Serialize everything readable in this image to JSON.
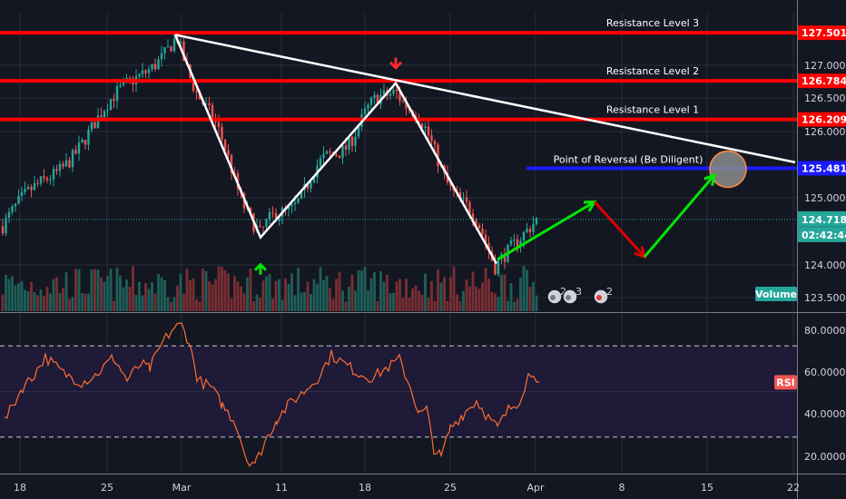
{
  "chart_data": [
    {
      "type": "candlestick",
      "panel": "price",
      "x_ticks": [
        "18",
        "25",
        "Mar",
        "11",
        "18",
        "25",
        "Apr",
        "8",
        "15",
        "22"
      ],
      "y_ticks": [
        "127.000",
        "126.500",
        "126.000",
        "125.000",
        "124.000",
        "123.500"
      ],
      "ylim": [
        123.35,
        127.8
      ],
      "grid": true,
      "last_price": "124.718",
      "countdown": "02:42:44",
      "volume_label": "Volume",
      "resistance_levels": [
        {
          "name": "Resistance Level 3",
          "price": 127.501,
          "price_label": "127.501"
        },
        {
          "name": "Resistance Level 2",
          "price": 126.784,
          "price_label": "126.784"
        },
        {
          "name": "Resistance Level 1",
          "price": 126.209,
          "price_label": "126.209"
        }
      ],
      "reversal": {
        "name": "Point of Reversal (Be Diligent)",
        "price": 125.481,
        "price_label": "125.481"
      },
      "swing_points": [
        {
          "x": 193,
          "price": 127.47
        },
        {
          "x": 287,
          "price": 124.45
        },
        {
          "x": 436,
          "price": 126.75
        },
        {
          "x": 547,
          "price": 124.06
        }
      ],
      "trendline": [
        {
          "x": 193,
          "price": 127.47
        },
        {
          "x": 876,
          "price": 125.57
        }
      ],
      "projection_path": [
        {
          "x": 548,
          "price": 124.12,
          "color": "#00e600"
        },
        {
          "x": 655,
          "price": 124.98,
          "color": "#e00000"
        },
        {
          "x": 710,
          "price": 124.16,
          "color": "#00e600"
        },
        {
          "x": 787,
          "price": 125.38
        }
      ],
      "event_badges": [
        "2",
        "3",
        "2"
      ],
      "colors": {
        "up": "#26a69a",
        "down": "#ef5350",
        "resistance": "#ff0000",
        "reversal": "#1a1aff",
        "trendline": "#ffffff"
      }
    },
    {
      "type": "line",
      "panel": "rsi",
      "label": "RSI",
      "y_ticks": [
        "80.0000",
        "60.0000",
        "40.0000",
        "20.0000"
      ],
      "ylim": [
        14,
        84
      ],
      "band": [
        30,
        70
      ],
      "last_value": 54,
      "color": "#ff6d2e",
      "series": [
        {
          "x": 5,
          "y": 37
        },
        {
          "x": 25,
          "y": 52
        },
        {
          "x": 35,
          "y": 56
        },
        {
          "x": 50,
          "y": 65
        },
        {
          "x": 70,
          "y": 58
        },
        {
          "x": 90,
          "y": 54
        },
        {
          "x": 105,
          "y": 57
        },
        {
          "x": 125,
          "y": 65
        },
        {
          "x": 140,
          "y": 55
        },
        {
          "x": 155,
          "y": 62
        },
        {
          "x": 165,
          "y": 60
        },
        {
          "x": 180,
          "y": 72
        },
        {
          "x": 192,
          "y": 78
        },
        {
          "x": 200,
          "y": 79
        },
        {
          "x": 208,
          "y": 72
        },
        {
          "x": 218,
          "y": 55
        },
        {
          "x": 232,
          "y": 52
        },
        {
          "x": 245,
          "y": 44
        },
        {
          "x": 260,
          "y": 36
        },
        {
          "x": 272,
          "y": 20
        },
        {
          "x": 282,
          "y": 19
        },
        {
          "x": 292,
          "y": 28
        },
        {
          "x": 305,
          "y": 38
        },
        {
          "x": 320,
          "y": 45
        },
        {
          "x": 335,
          "y": 50
        },
        {
          "x": 350,
          "y": 56
        },
        {
          "x": 365,
          "y": 66
        },
        {
          "x": 380,
          "y": 62
        },
        {
          "x": 395,
          "y": 58
        },
        {
          "x": 410,
          "y": 56
        },
        {
          "x": 425,
          "y": 60
        },
        {
          "x": 440,
          "y": 64
        },
        {
          "x": 452,
          "y": 52
        },
        {
          "x": 462,
          "y": 40
        },
        {
          "x": 470,
          "y": 42
        },
        {
          "x": 478,
          "y": 25
        },
        {
          "x": 486,
          "y": 21
        },
        {
          "x": 496,
          "y": 34
        },
        {
          "x": 510,
          "y": 40
        },
        {
          "x": 525,
          "y": 46
        },
        {
          "x": 535,
          "y": 40
        },
        {
          "x": 548,
          "y": 34
        },
        {
          "x": 560,
          "y": 42
        },
        {
          "x": 572,
          "y": 46
        },
        {
          "x": 582,
          "y": 57
        },
        {
          "x": 588,
          "y": 59
        },
        {
          "x": 594,
          "y": 54
        }
      ]
    }
  ]
}
